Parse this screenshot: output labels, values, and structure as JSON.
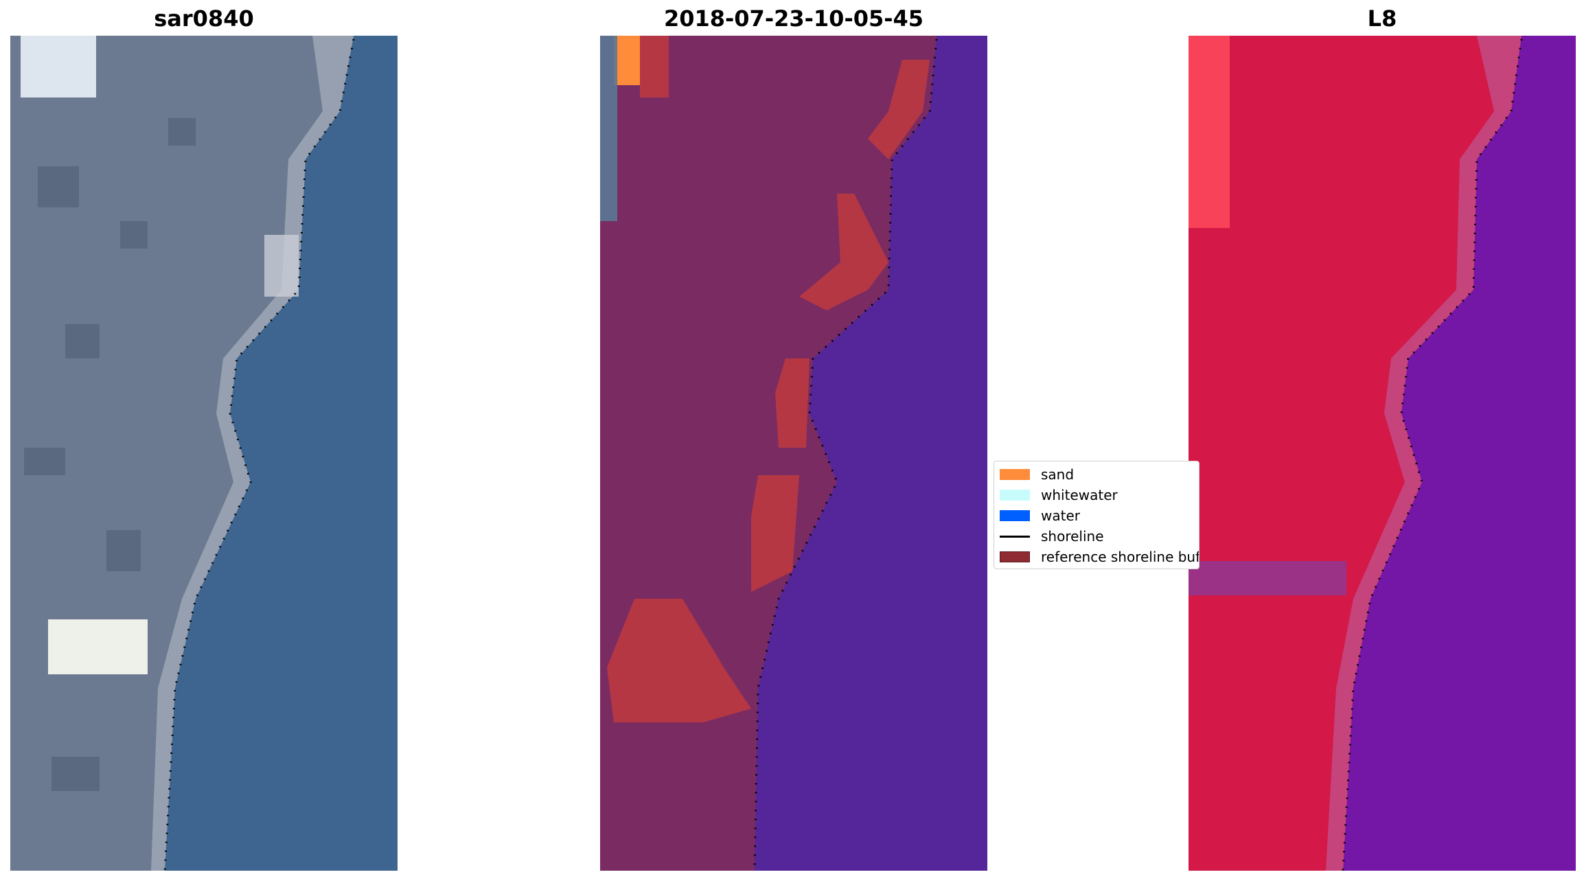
{
  "panels": [
    {
      "id": "rgb",
      "title": "sar0840"
    },
    {
      "id": "classified",
      "title": "2018-07-23-10-05-45"
    },
    {
      "id": "index",
      "title": "L8"
    }
  ],
  "legend": {
    "items": [
      {
        "label": "sand",
        "kind": "patch",
        "color": "#ff8c3a"
      },
      {
        "label": "whitewater",
        "kind": "patch",
        "color": "#c8fbfb"
      },
      {
        "label": "water",
        "kind": "patch",
        "color": "#0060ff"
      },
      {
        "label": "shoreline",
        "kind": "line",
        "color": "#000000"
      },
      {
        "label": "reference shoreline buffer",
        "kind": "patch",
        "color": "#8f2b33"
      }
    ]
  },
  "colors": {
    "land_rgb": "#6b7a90",
    "sea_rgb": "#3d6590",
    "land_classified": "#7a2c62",
    "sea_classified": "#55259a",
    "land_index": "#d41848",
    "sea_index": "#7416a6"
  }
}
